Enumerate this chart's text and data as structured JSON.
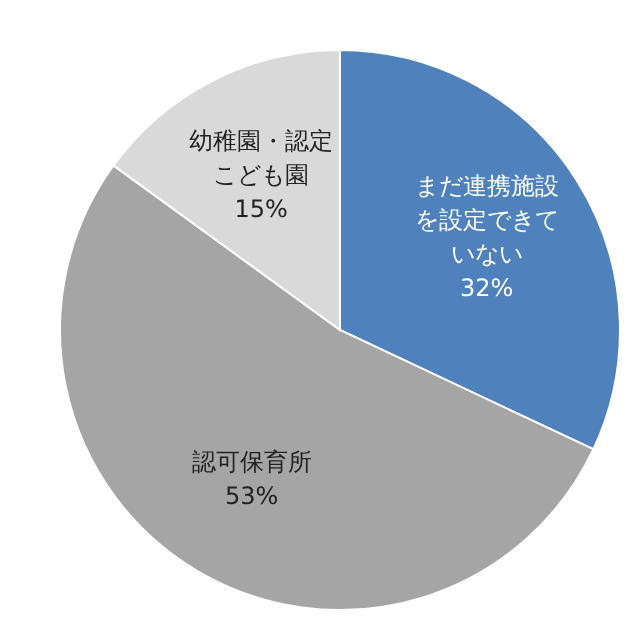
{
  "chart_data": {
    "type": "pie",
    "categories": [
      "まだ連携施設を設定できていない",
      "認可保育所",
      "幼稚園・認定こども園"
    ],
    "values": [
      32,
      53,
      15
    ],
    "value_labels": [
      "32%",
      "53%",
      "15%"
    ],
    "colors": [
      "#4f81bd",
      "#a5a5a5",
      "#d9d9d9"
    ],
    "legend": false
  }
}
